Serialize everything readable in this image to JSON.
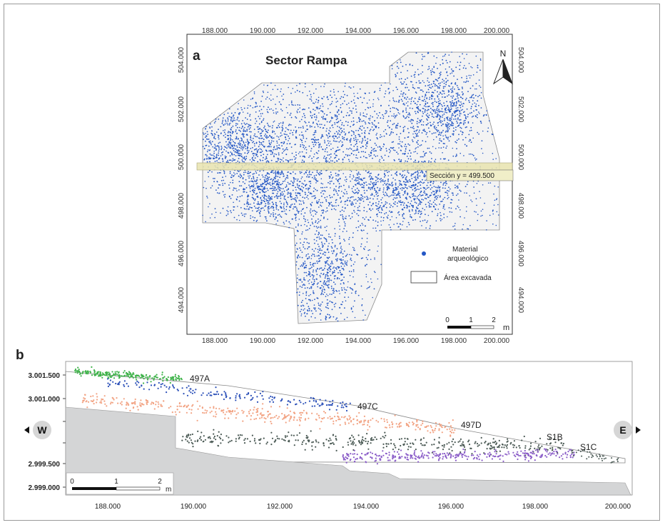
{
  "panel_a": {
    "letter": "a",
    "title": "Sector Rampa",
    "north_label": "N",
    "x_ticks": [
      "188.000",
      "190.000",
      "192.000",
      "194.000",
      "196.000",
      "198.000",
      "200.000"
    ],
    "y_ticks": [
      "504.000",
      "502.000",
      "500.000",
      "498.000",
      "496.000",
      "494.000"
    ],
    "section_label": "Sección y = 499.500",
    "legend": {
      "material_line1": "Material",
      "material_line2": "arqueológico",
      "area_label": "Área excavada",
      "point_color": "#2457c5",
      "area_color": "#f3f3f3"
    },
    "scalebar": {
      "labels": [
        "0",
        "1",
        "2"
      ],
      "unit": "m"
    }
  },
  "panel_b": {
    "letter": "b",
    "y_ticks": [
      "3.001.500",
      "3.001.000",
      "2.999.500",
      "2.999.000"
    ],
    "x_ticks": [
      "188.000",
      "190.000",
      "192.000",
      "194.000",
      "196.000",
      "198.000",
      "200.000"
    ],
    "levels": [
      "497A",
      "497C",
      "497D",
      "S1B",
      "S1C"
    ],
    "west": "W",
    "east": "E",
    "scalebar": {
      "labels": [
        "0",
        "1",
        "2"
      ],
      "unit": "m"
    },
    "colors": {
      "green": "#3fb34a",
      "blue": "#2a4fb8",
      "salmon": "#f2a383",
      "dark": "#4b5a55",
      "purple": "#8a5cc8",
      "bedrock": "#d4d5d6"
    }
  }
}
